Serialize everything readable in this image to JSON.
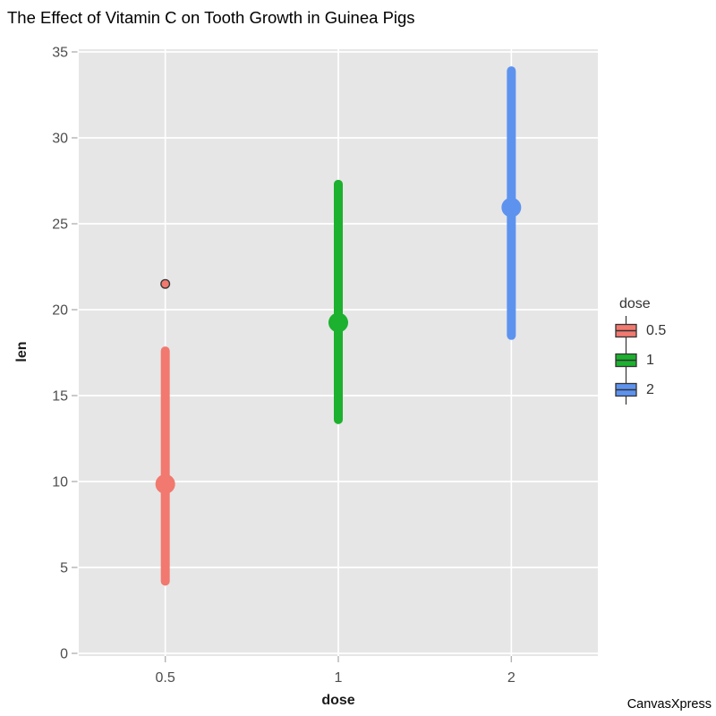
{
  "watermark": "CanvasXpress",
  "chart_data": {
    "type": "boxplot",
    "title": "The Effect of Vitamin C on Tooth Growth in Guinea Pigs",
    "xlabel": "dose",
    "ylabel": "len",
    "x_categories": [
      "0.5",
      "1",
      "2"
    ],
    "ylim": [
      0,
      35
    ],
    "yticks": [
      0,
      5,
      10,
      15,
      20,
      25,
      30,
      35
    ],
    "grid": "major white gridlines on gray panel",
    "legend": {
      "title": "dose",
      "position": "right"
    },
    "series": [
      {
        "name": "0.5",
        "color": "#F1796F",
        "median": 9.85,
        "whisker_low": 4.2,
        "whisker_high": 17.6,
        "outliers": [
          21.5
        ]
      },
      {
        "name": "1",
        "color": "#1CB12E",
        "median": 19.25,
        "whisker_low": 13.6,
        "whisker_high": 27.3,
        "outliers": []
      },
      {
        "name": "2",
        "color": "#5D93EF",
        "median": 25.95,
        "whisker_low": 18.5,
        "whisker_high": 33.9,
        "outliers": []
      }
    ],
    "panel_background": "#E6E6E6",
    "gridline_color": "#FFFFFF",
    "tick_color": "#B3B3B3",
    "tick_label_color": "#4D4D4D",
    "outlier_stroke": "#3A3A3A",
    "glyph_outline": "#333333"
  }
}
